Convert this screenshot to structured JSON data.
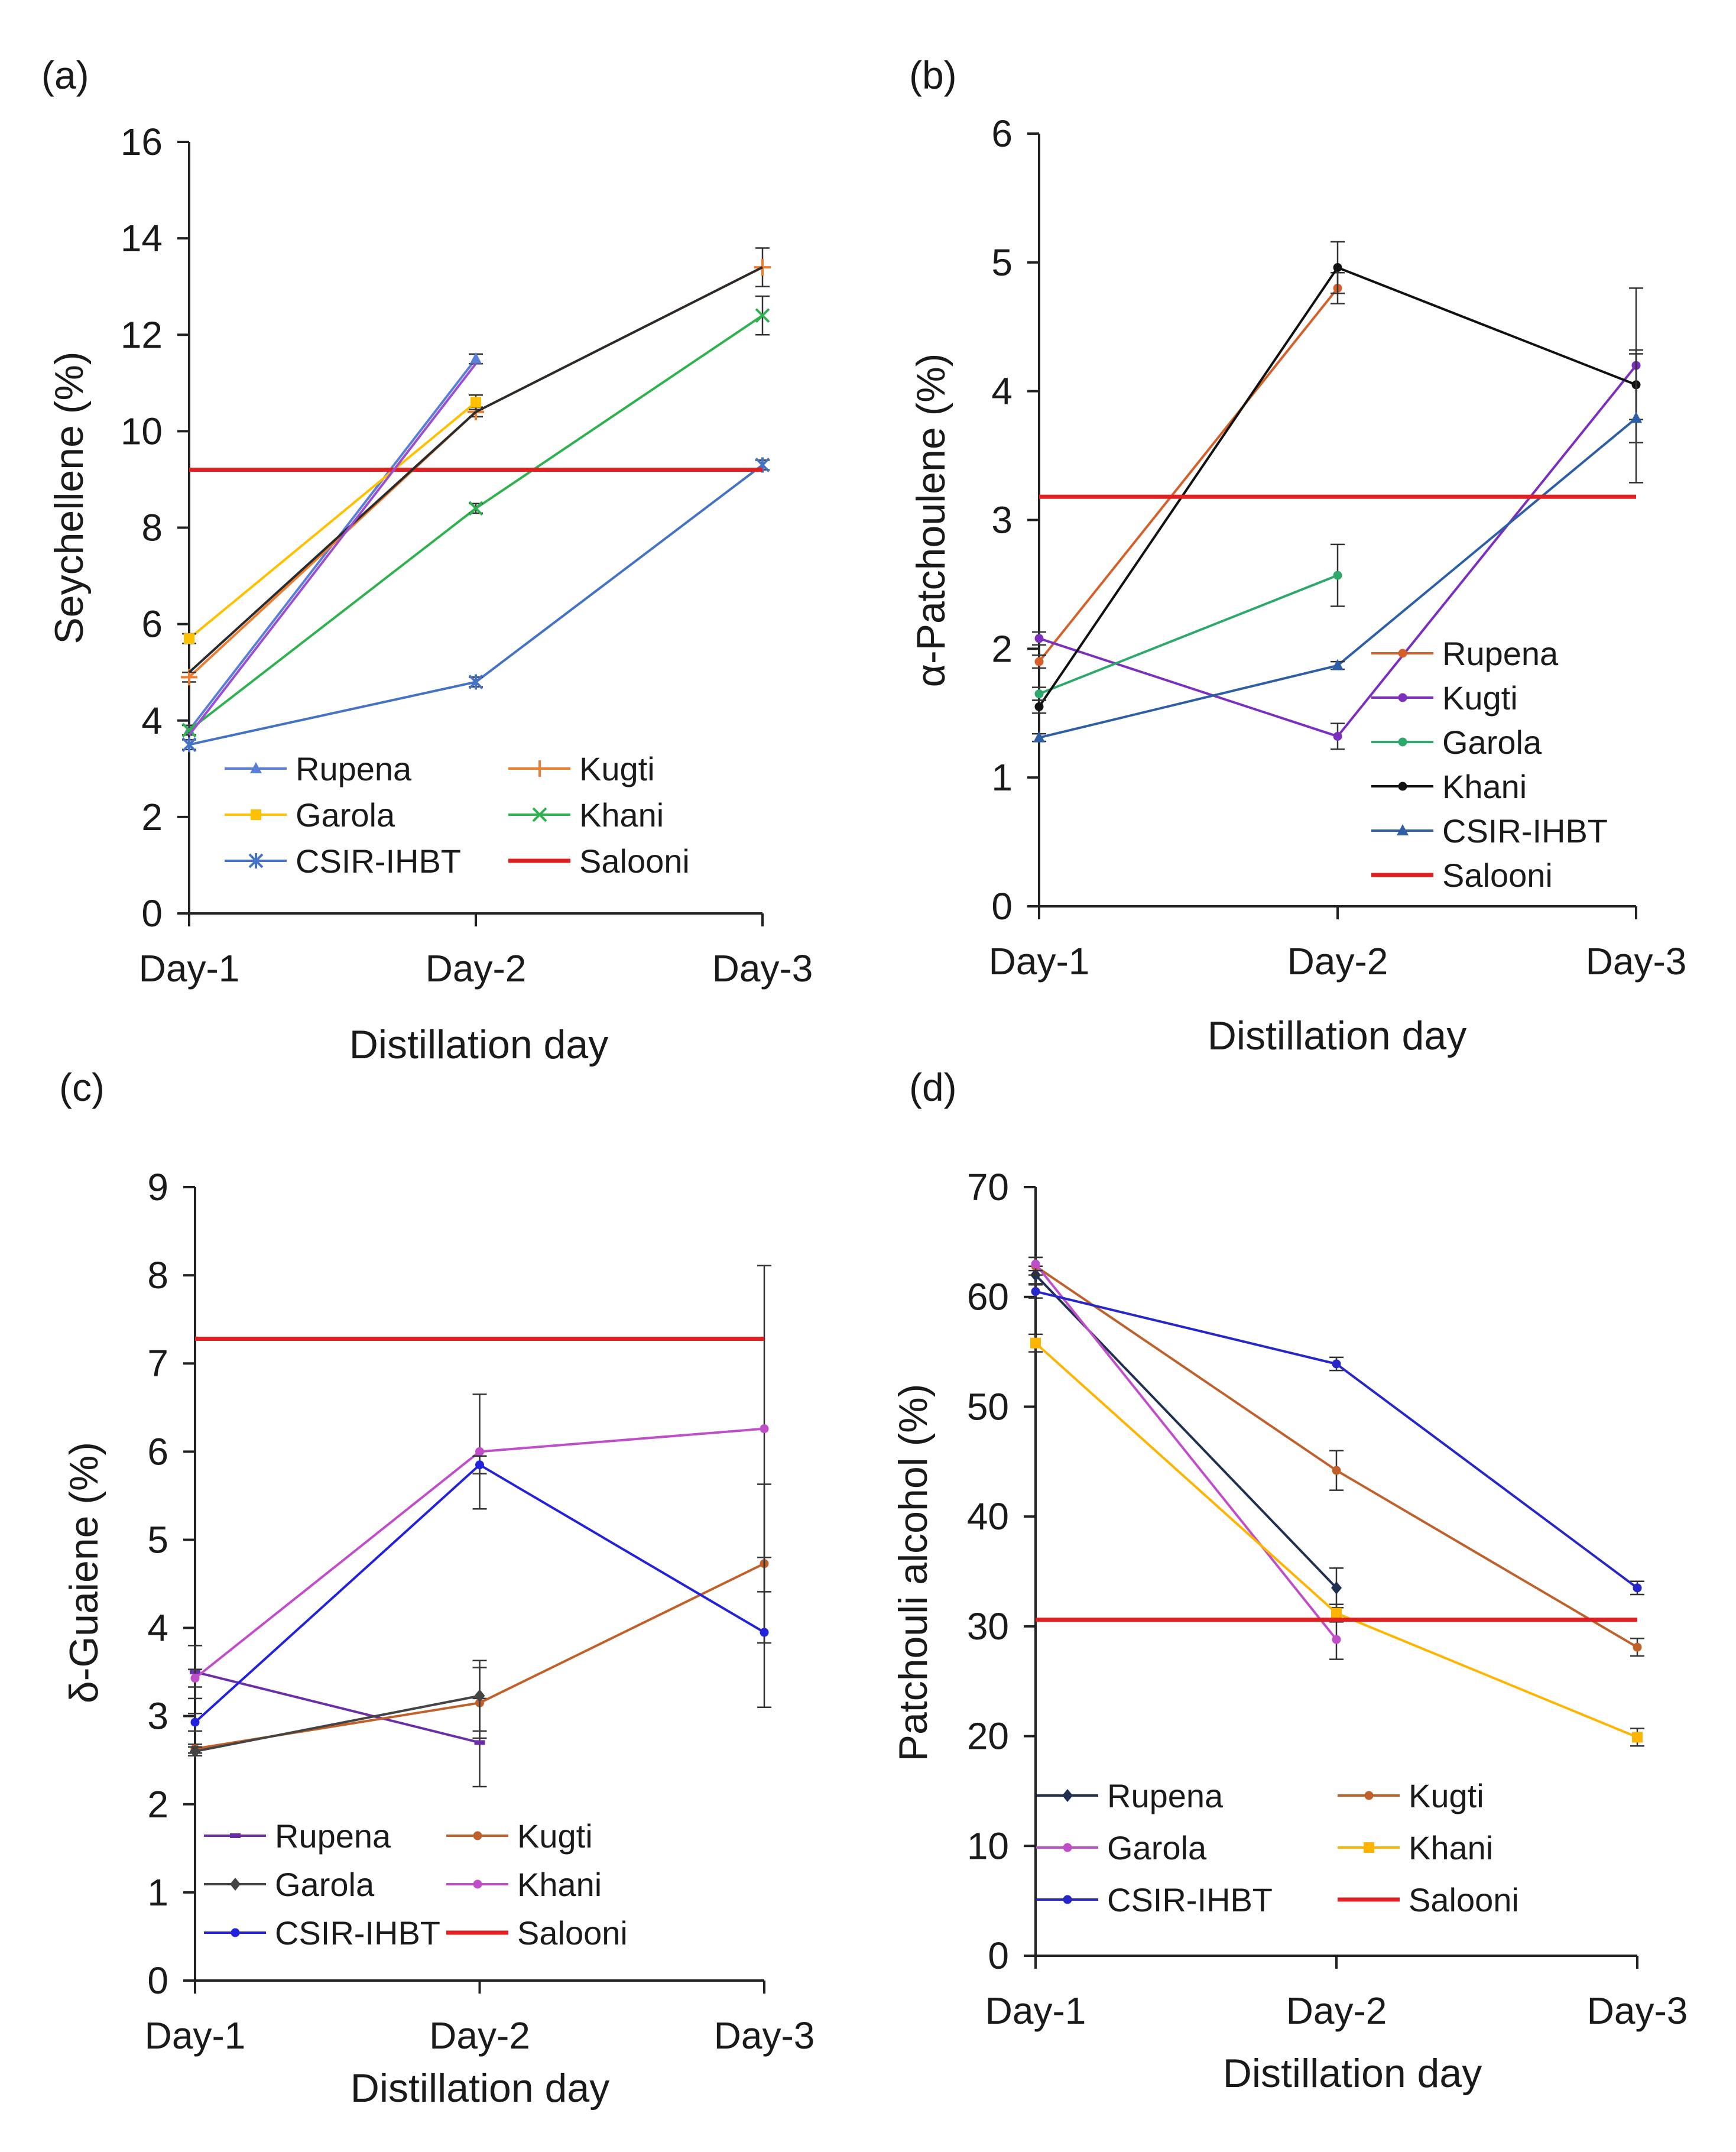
{
  "chart_data": [
    {
      "panel": "(a)",
      "type": "line",
      "xlabel": "Distillation day",
      "ylabel": "Seychellene (%)",
      "categories": [
        "Day-1",
        "Day-2",
        "Day-3"
      ],
      "ylim": [
        0,
        16
      ],
      "yticks": [
        0,
        2,
        4,
        6,
        8,
        10,
        12,
        14,
        16
      ],
      "legend_position": "bottom-center",
      "series": [
        {
          "name": "Rupena",
          "color": "#5b7fd6",
          "marker": "triangle",
          "values": [
            3.8,
            11.5,
            null
          ],
          "err": [
            0.1,
            0.1,
            null
          ]
        },
        {
          "name": "Kugti",
          "color": "#ed7d31",
          "marker": "plus",
          "values": [
            4.9,
            10.4,
            13.4
          ],
          "err": [
            0.1,
            0.1,
            0.4
          ]
        },
        {
          "name": "Garola",
          "color": "#ffc000",
          "marker": "square",
          "values": [
            5.7,
            10.6,
            null
          ],
          "err": [
            0.1,
            0.15,
            null
          ]
        },
        {
          "name": "Khani",
          "color": "#2eb14e",
          "marker": "x",
          "values": [
            3.8,
            8.4,
            12.4
          ],
          "err": [
            0.1,
            0.1,
            0.4
          ]
        },
        {
          "name": "CSIR-IHBT",
          "color": "#4472c4",
          "marker": "asterisk",
          "values": [
            3.5,
            4.8,
            9.3
          ],
          "err": [
            0.1,
            0.1,
            0.1
          ]
        },
        {
          "name": "Salooni",
          "color": "#e02020",
          "marker": "none",
          "values": [
            9.2,
            9.2,
            9.2
          ],
          "err": [
            null,
            null,
            null
          ]
        },
        {
          "name": "",
          "color": "#2b2b2b",
          "marker": "none",
          "values": [
            5.0,
            10.4,
            13.4
          ],
          "err": [
            null,
            null,
            null
          ]
        },
        {
          "name": "",
          "color": "#9b4fd0",
          "marker": "none",
          "values": [
            3.7,
            11.4,
            null
          ],
          "err": [
            null,
            null,
            null
          ]
        }
      ]
    },
    {
      "panel": "(b)",
      "type": "line",
      "xlabel": "Distillation day",
      "ylabel": "α-Patchoulene (%)",
      "categories": [
        "Day-1",
        "Day-2",
        "Day-3"
      ],
      "ylim": [
        0,
        6
      ],
      "yticks": [
        0,
        1,
        2,
        3,
        4,
        5,
        6
      ],
      "legend_position": "bottom-right",
      "series": [
        {
          "name": "Rupena",
          "color": "#d4602a",
          "marker": "dot",
          "values": [
            1.9,
            4.8,
            null
          ],
          "err": [
            0.05,
            0.12,
            null
          ]
        },
        {
          "name": "Kugti",
          "color": "#7b2fbf",
          "marker": "dot",
          "values": [
            2.08,
            1.32,
            4.2
          ],
          "err": [
            0.05,
            0.1,
            0.6
          ]
        },
        {
          "name": "Garola",
          "color": "#2ea86b",
          "marker": "dot",
          "values": [
            1.65,
            2.57,
            null
          ],
          "err": [
            0.05,
            0.24,
            null
          ]
        },
        {
          "name": "Khani",
          "color": "#111111",
          "marker": "dot",
          "values": [
            1.55,
            4.96,
            4.05
          ],
          "err": [
            0.05,
            0.2,
            0.27
          ]
        },
        {
          "name": "CSIR-IHBT",
          "color": "#2e5fa6",
          "marker": "triangle",
          "values": [
            1.31,
            1.87,
            3.79
          ],
          "err": [
            0.03,
            0.03,
            0.5
          ]
        },
        {
          "name": "Salooni",
          "color": "#e02020",
          "marker": "none",
          "values": [
            3.18,
            3.18,
            3.18
          ],
          "err": [
            null,
            null,
            null
          ]
        }
      ]
    },
    {
      "panel": "(c)",
      "type": "line",
      "xlabel": "Distillation day",
      "ylabel": "δ-Guaiene (%)",
      "categories": [
        "Day-1",
        "Day-2",
        "Day-3"
      ],
      "ylim": [
        0,
        9
      ],
      "yticks": [
        0,
        1,
        2,
        3,
        4,
        5,
        6,
        7,
        8,
        9
      ],
      "legend_position": "bottom-center",
      "series": [
        {
          "name": "Rupena",
          "color": "#6a2fa8",
          "marker": "dash",
          "values": [
            3.5,
            2.7,
            null
          ],
          "err": [
            0.3,
            0.5,
            null
          ]
        },
        {
          "name": "Kugti",
          "color": "#c0602a",
          "marker": "dot",
          "values": [
            2.63,
            3.15,
            4.73
          ],
          "err": [
            0.05,
            0.4,
            0.9
          ]
        },
        {
          "name": "Garola",
          "color": "#444444",
          "marker": "diamond",
          "values": [
            2.6,
            3.23,
            null
          ],
          "err": [
            0.05,
            0.4,
            null
          ]
        },
        {
          "name": "Khani",
          "color": "#c04ec8",
          "marker": "dot",
          "values": [
            3.43,
            6.0,
            6.26
          ],
          "err": [
            0.1,
            0.65,
            1.85
          ]
        },
        {
          "name": "CSIR-IHBT",
          "color": "#2222dd",
          "marker": "dot",
          "values": [
            2.93,
            5.85,
            3.95
          ],
          "err": [
            0.1,
            0.1,
            0.85
          ]
        },
        {
          "name": "Salooni",
          "color": "#e02020",
          "marker": "none",
          "values": [
            7.28,
            7.28,
            7.28
          ],
          "err": [
            null,
            null,
            null
          ]
        }
      ]
    },
    {
      "panel": "(d)",
      "type": "line",
      "xlabel": "Distillation day",
      "ylabel": "Patchouli alcohol (%)",
      "categories": [
        "Day-1",
        "Day-2",
        "Day-3"
      ],
      "ylim": [
        0,
        70
      ],
      "yticks": [
        0,
        10,
        20,
        30,
        40,
        50,
        60,
        70
      ],
      "legend_position": "bottom-center",
      "series": [
        {
          "name": "Rupena",
          "color": "#1f3050",
          "marker": "diamond",
          "values": [
            62.0,
            33.5,
            null
          ],
          "err": [
            0.8,
            1.8,
            null
          ]
        },
        {
          "name": "Kugti",
          "color": "#c0602a",
          "marker": "dot",
          "values": [
            62.8,
            44.2,
            28.1
          ],
          "err": [
            0.8,
            1.8,
            0.8
          ]
        },
        {
          "name": "Garola",
          "color": "#c04ec8",
          "marker": "dot",
          "values": [
            63.0,
            28.8,
            null
          ],
          "err": [
            0.6,
            1.8,
            null
          ]
        },
        {
          "name": "Khani",
          "color": "#ffb400",
          "marker": "square",
          "values": [
            55.8,
            31.2,
            19.9
          ],
          "err": [
            0.8,
            0.8,
            0.8
          ]
        },
        {
          "name": "CSIR-IHBT",
          "color": "#2727c9",
          "marker": "dot",
          "values": [
            60.5,
            53.9,
            33.5
          ],
          "err": [
            0.6,
            0.6,
            0.6
          ]
        },
        {
          "name": "Salooni",
          "color": "#e02020",
          "marker": "none",
          "values": [
            30.6,
            30.6,
            30.6
          ],
          "err": [
            null,
            null,
            null
          ]
        }
      ]
    }
  ]
}
